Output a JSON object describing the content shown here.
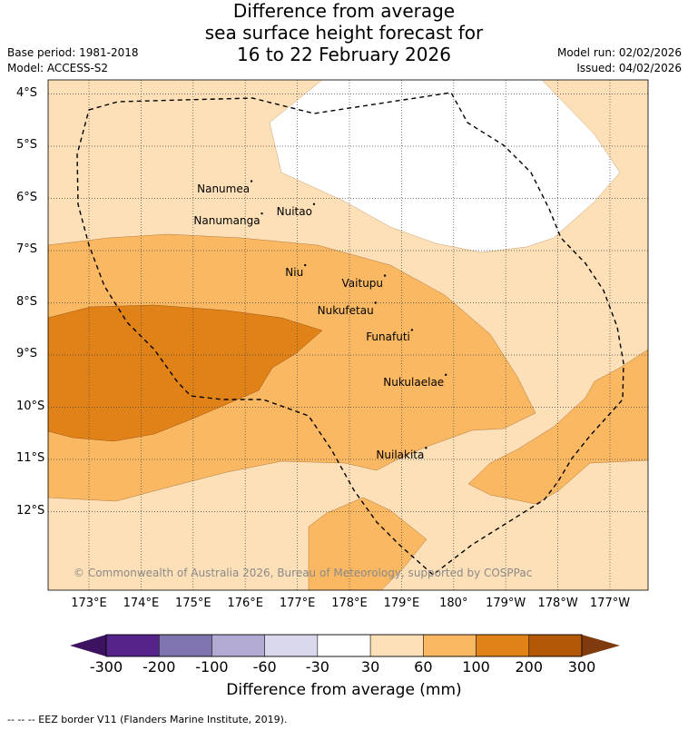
{
  "title": {
    "line1": "Difference from average",
    "line2": "sea surface height forecast for",
    "line3": "16 to 22 February 2026"
  },
  "meta_left": {
    "base_period": "Base period: 1981-2018",
    "model": "Model: ACCESS-S2"
  },
  "meta_right": {
    "model_run": "Model run: 02/02/2026",
    "issued": "Issued: 04/02/2026"
  },
  "axes": {
    "lat_labels": [
      "4°S",
      "5°S",
      "6°S",
      "7°S",
      "8°S",
      "9°S",
      "10°S",
      "11°S",
      "12°S"
    ],
    "lon_labels": [
      "173°E",
      "174°E",
      "175°E",
      "176°E",
      "177°E",
      "178°E",
      "179°E",
      "180°",
      "179°W",
      "178°W",
      "177°W"
    ],
    "lat_range": [
      -13.4,
      -3.7
    ],
    "lon_range": [
      172.3,
      182.7
    ]
  },
  "islands": [
    {
      "name": "Nanumea",
      "lat": -5.67,
      "lon": 176.12
    },
    {
      "name": "Nuitao",
      "lat": -6.11,
      "lon": 177.32
    },
    {
      "name": "Nanumanga",
      "lat": -6.29,
      "lon": 176.32
    },
    {
      "name": "Niu",
      "lat": -7.28,
      "lon": 177.15
    },
    {
      "name": "Vaitupu",
      "lat": -7.48,
      "lon": 178.68
    },
    {
      "name": "Nukufetau",
      "lat": -8.0,
      "lon": 178.5
    },
    {
      "name": "Funafuti",
      "lat": -8.52,
      "lon": 179.2
    },
    {
      "name": "Nukulaelae",
      "lat": -9.38,
      "lon": 179.85
    },
    {
      "name": "Nuilakita",
      "lat": -10.78,
      "lon": 179.47
    }
  ],
  "copyright": "© Commonwealth of Australia 2026, Bureau of Meteorology, supported by COSPPac",
  "colorbar": {
    "title": "Difference from average (mm)",
    "ticks": [
      "-300",
      "-200",
      "-100",
      "-60",
      "-30",
      "30",
      "60",
      "100",
      "200",
      "300"
    ],
    "colors": [
      "#3d1260",
      "#54248a",
      "#7f74ad",
      "#b2aad2",
      "#d9d8ec",
      "#ffffff",
      "#fde0b7",
      "#fab863",
      "#e18218",
      "#b25806",
      "#7f3a0d"
    ]
  },
  "footnote": "--  --  -- EEZ border V11 (Flanders Marine Institute, 2019)."
}
